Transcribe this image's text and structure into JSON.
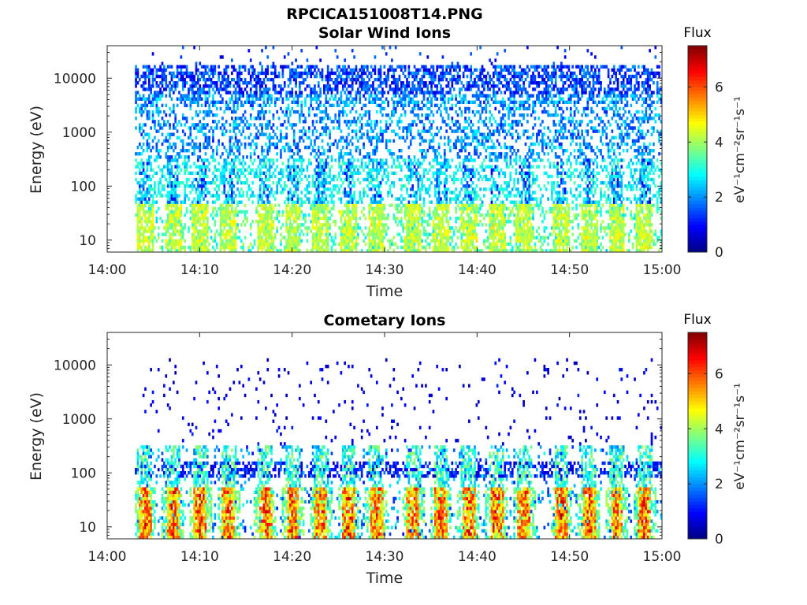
{
  "figure_title": "RPCICA151008T14.PNG",
  "chart_data": [
    {
      "type": "heatmap",
      "title": "Solar Wind Ions",
      "xlabel": "Time",
      "ylabel": "Energy (eV)",
      "x_ticks": [
        "14:00",
        "14:10",
        "14:20",
        "14:30",
        "14:40",
        "14:50",
        "15:00"
      ],
      "x_range": [
        "14:00",
        "15:00"
      ],
      "y_ticks": [
        "10",
        "100",
        "1000",
        "10000"
      ],
      "y_scale": "log",
      "y_range": [
        6,
        40000
      ],
      "colorbar": {
        "label": "Flux",
        "unit": "eV⁻¹cm⁻²sr⁻¹s⁻¹",
        "ticks": [
          "0",
          "2",
          "4",
          "6"
        ],
        "range": [
          0,
          7.5
        ],
        "colormap": "jet"
      },
      "bursts_time": [
        "14:04",
        "14:07",
        "14:10",
        "14:13",
        "14:17",
        "14:20",
        "14:23",
        "14:26",
        "14:29",
        "14:33",
        "14:36",
        "14:39",
        "14:42",
        "14:45",
        "14:49",
        "14:52",
        "14:55",
        "14:58"
      ],
      "data_start": "14:03",
      "data_end": "15:00"
    },
    {
      "type": "heatmap",
      "title": "Cometary Ions",
      "xlabel": "Time",
      "ylabel": "Energy (eV)",
      "x_ticks": [
        "14:00",
        "14:10",
        "14:20",
        "14:30",
        "14:40",
        "14:50",
        "15:00"
      ],
      "x_range": [
        "14:00",
        "15:00"
      ],
      "y_ticks": [
        "10",
        "100",
        "1000",
        "10000"
      ],
      "y_scale": "log",
      "y_range": [
        6,
        40000
      ],
      "colorbar": {
        "label": "Flux",
        "unit": "eV⁻¹cm⁻²sr⁻¹s⁻¹",
        "ticks": [
          "0",
          "2",
          "4",
          "6"
        ],
        "range": [
          0,
          7.5
        ],
        "colormap": "jet"
      },
      "bursts_time": [
        "14:04",
        "14:07",
        "14:10",
        "14:13",
        "14:17",
        "14:20",
        "14:23",
        "14:26",
        "14:29",
        "14:33",
        "14:36",
        "14:39",
        "14:42",
        "14:45",
        "14:49",
        "14:52",
        "14:55",
        "14:58"
      ],
      "data_start": "14:03",
      "data_end": "15:00"
    }
  ]
}
